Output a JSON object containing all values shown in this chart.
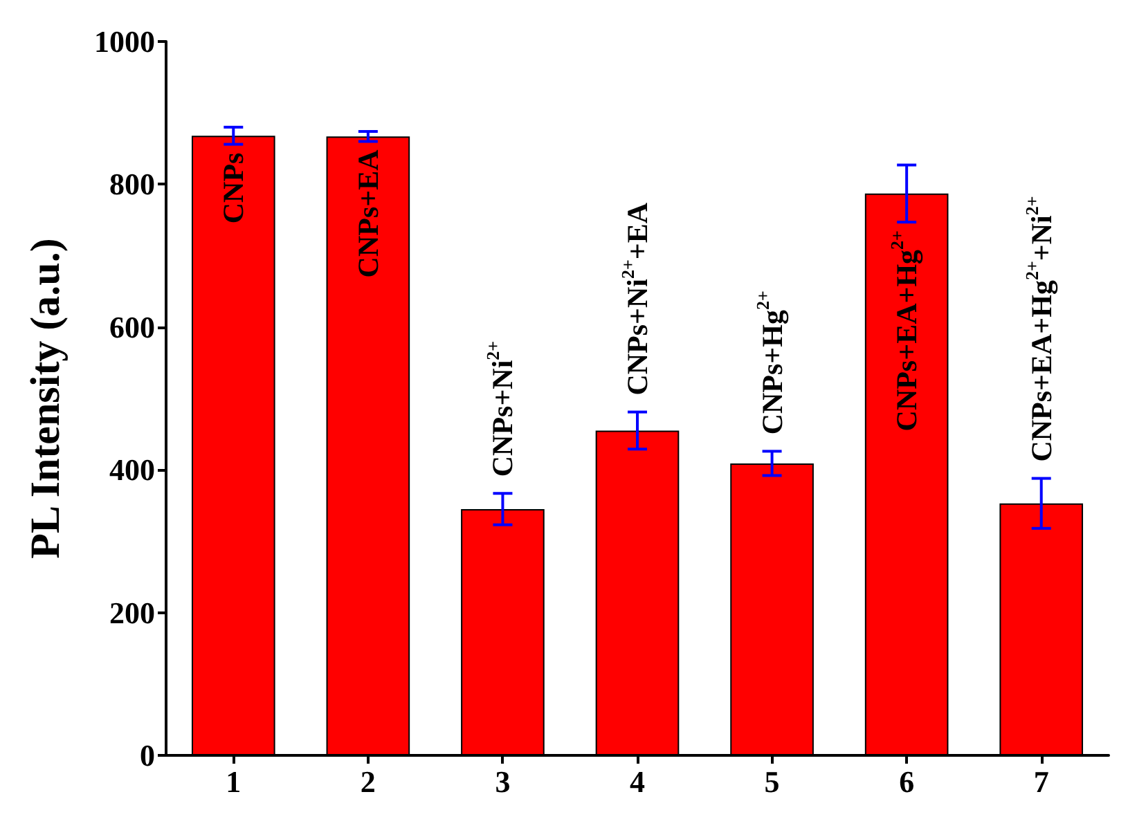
{
  "chart_data": {
    "type": "bar",
    "ylabel": "PL Intensity (a.u.)",
    "categories": [
      "1",
      "2",
      "3",
      "4",
      "5",
      "6",
      "7"
    ],
    "values": [
      868,
      867,
      345,
      455,
      409,
      787,
      353
    ],
    "errors": [
      12,
      7,
      22,
      26,
      17,
      40,
      35
    ],
    "color": "#ff0000",
    "ylim": [
      0,
      1000
    ],
    "yticks": [
      0,
      200,
      400,
      600,
      800,
      1000
    ],
    "grid": false,
    "annotations": [
      "CNPs",
      "CNPs+EA",
      "CNPs+Ni$^{2+}$",
      "CNPs+Ni$^{2+}$+EA",
      "CNPs+Hg$^{2+}$",
      "CNPs+EA+Hg$^{2+}$",
      "CNPs+EA+Hg$^{2+}$+Ni$^{2+}$"
    ]
  }
}
